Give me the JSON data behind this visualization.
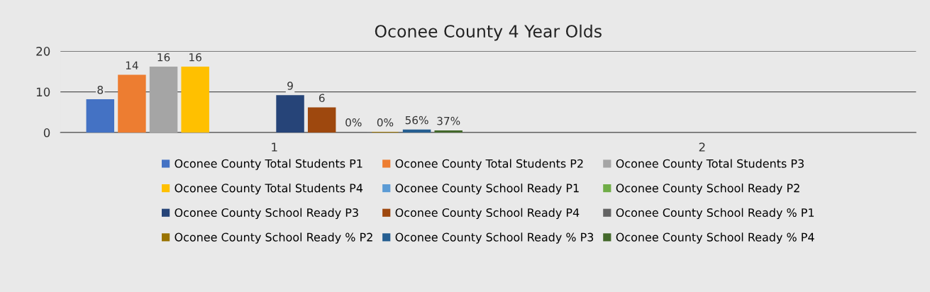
{
  "chart_data": {
    "type": "bar",
    "title": "Oconee County 4 Year Olds",
    "categories": [
      "1",
      "2"
    ],
    "series": [
      {
        "name": "Oconee County Total Students P1",
        "color": "#4472c4",
        "values": [
          8,
          null
        ],
        "value_labels": [
          "8",
          null
        ]
      },
      {
        "name": "Oconee County Total Students P2",
        "color": "#ed7d31",
        "values": [
          14,
          null
        ],
        "value_labels": [
          "14",
          null
        ]
      },
      {
        "name": "Oconee County Total Students P3",
        "color": "#a5a5a5",
        "values": [
          16,
          null
        ],
        "value_labels": [
          "16",
          null
        ]
      },
      {
        "name": "Oconee County Total Students P4",
        "color": "#ffc000",
        "values": [
          16,
          null
        ],
        "value_labels": [
          "16",
          null
        ]
      },
      {
        "name": "Oconee County School Ready P1",
        "color": "#5b9bd5",
        "values": [
          null,
          null
        ],
        "value_labels": [
          null,
          null
        ]
      },
      {
        "name": "Oconee County School Ready P2",
        "color": "#70ad47",
        "values": [
          null,
          null
        ],
        "value_labels": [
          null,
          null
        ]
      },
      {
        "name": "Oconee County School Ready P3",
        "color": "#264478",
        "values": [
          9,
          null
        ],
        "value_labels": [
          "9",
          null
        ]
      },
      {
        "name": "Oconee County School Ready P4",
        "color": "#9e480e",
        "values": [
          6,
          null
        ],
        "value_labels": [
          "6",
          null
        ]
      },
      {
        "name": "Oconee County School Ready % P1",
        "color": "#636363",
        "values": [
          0,
          null
        ],
        "value_labels": [
          "0%",
          null
        ]
      },
      {
        "name": "Oconee County School Ready % P2",
        "color": "#997300",
        "values": [
          0,
          null
        ],
        "value_labels": [
          "0%",
          null
        ]
      },
      {
        "name": "Oconee County School Ready % P3",
        "color": "#255e91",
        "values": [
          0.56,
          null
        ],
        "value_labels": [
          "56%",
          null
        ]
      },
      {
        "name": "Oconee County School Ready % P4",
        "color": "#43682b",
        "values": [
          0.37,
          null
        ],
        "value_labels": [
          "37%",
          null
        ]
      }
    ],
    "ylim": [
      0,
      20
    ],
    "yticks": [
      0,
      10,
      20
    ],
    "grid": "y",
    "legend": "bottom"
  }
}
